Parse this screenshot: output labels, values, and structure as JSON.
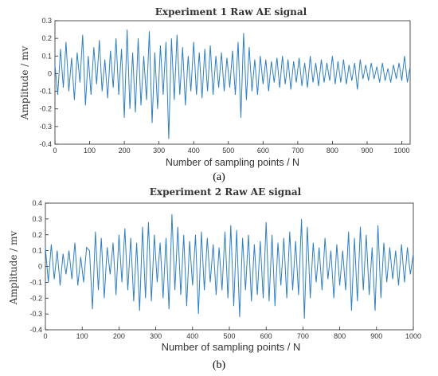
{
  "chart_data": [
    {
      "type": "line",
      "panel_label": "(a)",
      "title": "Experiment 1 Raw AE signal",
      "xlabel": "Number of sampling points / N",
      "ylabel": "Amplitude / mv",
      "xlim": [
        0,
        1024
      ],
      "ylim": [
        -0.4,
        0.3
      ],
      "xticks": [
        0,
        100,
        200,
        300,
        400,
        500,
        600,
        700,
        800,
        900,
        1000
      ],
      "yticks": [
        -0.4,
        -0.3,
        -0.2,
        -0.1,
        0,
        0.1,
        0.2,
        0.3
      ],
      "ytick_labels": [
        "-0.4",
        "-0.3",
        "-0.2",
        "-0.1",
        "0",
        "0.1",
        "0.2",
        "0.3"
      ],
      "grid": false,
      "line_color": "#2f7fc1",
      "series": [
        {
          "x": [
            0,
            8,
            16,
            24,
            32,
            40,
            48,
            56,
            64,
            72,
            80,
            88,
            96,
            104,
            112,
            120,
            128,
            136,
            144,
            152,
            160,
            168,
            176,
            184,
            192,
            200,
            208,
            216,
            224,
            232,
            240,
            248,
            256,
            264,
            272,
            280,
            288,
            296,
            304,
            312,
            320,
            328,
            336,
            344,
            352,
            360,
            368,
            376,
            384,
            392,
            400,
            408,
            416,
            424,
            432,
            440,
            448,
            456,
            464,
            472,
            480,
            488,
            496,
            504,
            512,
            520,
            528,
            536,
            544,
            552,
            560,
            568,
            576,
            584,
            592,
            600,
            608,
            616,
            624,
            632,
            640,
            648,
            656,
            664,
            672,
            680,
            688,
            696,
            704,
            712,
            720,
            728,
            736,
            744,
            752,
            760,
            768,
            776,
            784,
            792,
            800,
            808,
            816,
            824,
            832,
            840,
            848,
            856,
            864,
            872,
            880,
            888,
            896,
            904,
            912,
            920,
            928,
            936,
            944,
            952,
            960,
            968,
            976,
            984,
            992,
            1000,
            1008,
            1016,
            1024
          ],
          "values": [
            0.05,
            -0.12,
            0.14,
            -0.08,
            0.18,
            -0.1,
            0.09,
            -0.15,
            0.12,
            -0.05,
            0.22,
            -0.18,
            0.1,
            -0.12,
            0.15,
            -0.06,
            0.19,
            -0.1,
            0.08,
            -0.14,
            0.13,
            -0.08,
            0.2,
            -0.12,
            0.14,
            -0.25,
            0.25,
            -0.2,
            0.12,
            -0.22,
            0.2,
            -0.18,
            0.1,
            -0.15,
            0.24,
            -0.28,
            0.12,
            -0.2,
            0.16,
            -0.12,
            0.18,
            -0.37,
            0.2,
            -0.15,
            0.22,
            -0.12,
            0.15,
            -0.18,
            0.1,
            -0.1,
            0.18,
            -0.12,
            0.12,
            -0.14,
            0.14,
            -0.1,
            0.16,
            -0.12,
            0.1,
            -0.08,
            0.12,
            -0.1,
            0.09,
            -0.08,
            0.13,
            -0.12,
            0.18,
            -0.25,
            0.23,
            -0.15,
            0.15,
            -0.1,
            0.08,
            -0.12,
            0.1,
            -0.06,
            0.08,
            -0.1,
            0.07,
            -0.05,
            0.09,
            -0.08,
            0.1,
            -0.06,
            0.08,
            -0.09,
            0.07,
            -0.05,
            0.09,
            -0.07,
            0.06,
            -0.08,
            0.1,
            -0.05,
            0.06,
            -0.07,
            0.08,
            -0.05,
            0.06,
            -0.04,
            0.1,
            -0.06,
            0.07,
            -0.05,
            0.08,
            -0.06,
            0.05,
            -0.04,
            0.06,
            -0.09,
            0.08,
            -0.03,
            0.05,
            -0.04,
            0.06,
            -0.03,
            0.04,
            -0.05,
            0.06,
            -0.04,
            0.03,
            -0.05,
            0.05,
            -0.03,
            0.06,
            -0.04,
            0.1,
            -0.05,
            0.04
          ]
        }
      ]
    },
    {
      "type": "line",
      "panel_label": "(b)",
      "title": "Experiment 2 Raw AE signal",
      "xlabel": "Number of sampling points / N",
      "ylabel": "Amplitude / mv",
      "xlim": [
        0,
        1000
      ],
      "ylim": [
        -0.4,
        0.4
      ],
      "xticks": [
        0,
        100,
        200,
        300,
        400,
        500,
        600,
        700,
        800,
        900,
        1000
      ],
      "yticks": [
        -0.4,
        -0.3,
        -0.2,
        -0.1,
        0,
        0.1,
        0.2,
        0.3,
        0.4
      ],
      "ytick_labels": [
        "-0.4",
        "-0.3",
        "-0.2",
        "-0.1",
        "0",
        "0.1",
        "0.2",
        "0.3",
        "0.4"
      ],
      "grid": false,
      "line_color": "#2f7fc1",
      "series": [
        {
          "x": [
            0,
            8,
            16,
            24,
            32,
            40,
            48,
            56,
            64,
            72,
            80,
            88,
            96,
            104,
            112,
            120,
            128,
            136,
            144,
            152,
            160,
            168,
            176,
            184,
            192,
            200,
            208,
            216,
            224,
            232,
            240,
            248,
            256,
            264,
            272,
            280,
            288,
            296,
            304,
            312,
            320,
            328,
            336,
            344,
            352,
            360,
            368,
            376,
            384,
            392,
            400,
            408,
            416,
            424,
            432,
            440,
            448,
            456,
            464,
            472,
            480,
            488,
            496,
            504,
            512,
            520,
            528,
            536,
            544,
            552,
            560,
            568,
            576,
            584,
            592,
            600,
            608,
            616,
            624,
            632,
            640,
            648,
            656,
            664,
            672,
            680,
            688,
            696,
            704,
            712,
            720,
            728,
            736,
            744,
            752,
            760,
            768,
            776,
            784,
            792,
            800,
            808,
            816,
            824,
            832,
            840,
            848,
            856,
            864,
            872,
            880,
            888,
            896,
            904,
            912,
            920,
            928,
            936,
            944,
            952,
            960,
            968,
            976,
            984,
            992,
            1000
          ],
          "values": [
            0.12,
            -0.1,
            0.14,
            -0.08,
            0.1,
            -0.12,
            0.08,
            -0.05,
            0.1,
            -0.08,
            0.15,
            -0.12,
            0.06,
            -0.1,
            0.12,
            0.1,
            -0.27,
            0.22,
            -0.15,
            0.18,
            -0.2,
            0.12,
            -0.05,
            0.15,
            -0.18,
            0.2,
            -0.1,
            0.24,
            -0.15,
            0.18,
            -0.22,
            0.15,
            -0.28,
            0.25,
            -0.2,
            0.28,
            -0.22,
            0.2,
            -0.1,
            0.15,
            -0.2,
            0.18,
            -0.27,
            0.33,
            -0.15,
            0.25,
            -0.18,
            0.2,
            -0.25,
            0.16,
            -0.12,
            0.2,
            -0.3,
            0.22,
            -0.15,
            0.18,
            -0.1,
            0.14,
            -0.18,
            0.12,
            -0.15,
            0.22,
            -0.2,
            0.26,
            -0.25,
            0.23,
            -0.32,
            0.18,
            -0.15,
            0.2,
            -0.22,
            0.14,
            -0.18,
            0.16,
            -0.2,
            0.28,
            -0.22,
            0.2,
            -0.25,
            0.15,
            -0.12,
            0.18,
            -0.2,
            0.22,
            -0.15,
            0.16,
            -0.18,
            0.3,
            -0.33,
            0.25,
            -0.2,
            0.15,
            -0.1,
            0.12,
            -0.15,
            0.18,
            -0.08,
            0.1,
            -0.2,
            0.14,
            -0.12,
            0.1,
            -0.15,
            0.22,
            -0.28,
            0.18,
            -0.22,
            0.25,
            -0.15,
            0.2,
            -0.18,
            0.12,
            -0.28,
            0.26,
            -0.2,
            0.15,
            -0.1,
            0.12,
            -0.08,
            0.1,
            -0.12,
            0.14,
            -0.1,
            0.12,
            -0.05,
            0.08
          ]
        }
      ]
    }
  ]
}
